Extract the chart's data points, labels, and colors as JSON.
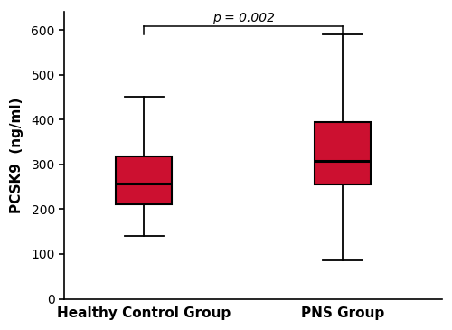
{
  "groups": [
    "Healthy Control Group",
    "PNS Group"
  ],
  "box_data": [
    {
      "whisker_low": 140,
      "q1": 210,
      "median": 258,
      "q3": 318,
      "whisker_high": 450
    },
    {
      "whisker_low": 85,
      "q1": 255,
      "median": 308,
      "q3": 395,
      "whisker_high": 590
    }
  ],
  "box_color": "#CC1030",
  "box_edge_color": "#000000",
  "median_color": "#000000",
  "whisker_color": "#000000",
  "ylabel": "PCSK9  (ng/ml)",
  "ylim": [
    0,
    640
  ],
  "yticks": [
    0,
    100,
    200,
    300,
    400,
    500,
    600
  ],
  "pvalue_text": "p = 0.002",
  "background_color": "#ffffff",
  "box_width": 0.28,
  "positions": [
    1,
    2
  ],
  "xlim": [
    0.6,
    2.5
  ]
}
